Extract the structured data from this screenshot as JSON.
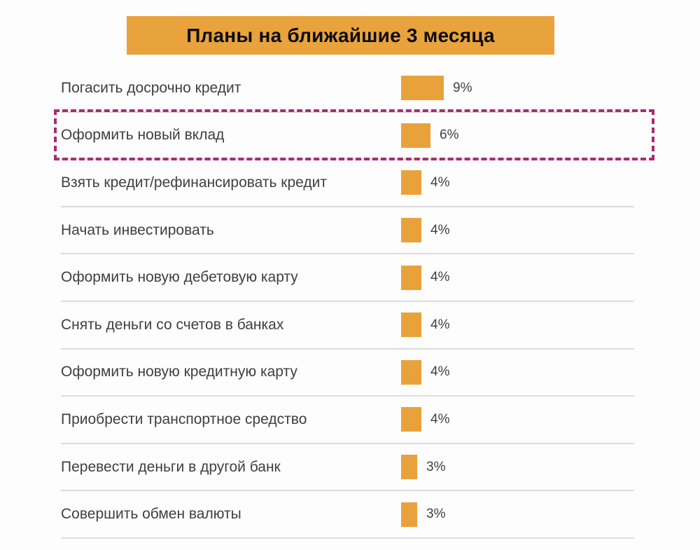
{
  "title": "Планы на ближайшие 3 месяца",
  "colors": {
    "bar_fill": "#E9A23B",
    "banner_background": "#E9A33D",
    "highlight_border": "#A92C72",
    "label_text": "#3F3F3F",
    "separator": "#DCDCDC"
  },
  "chart_data": {
    "type": "bar",
    "orientation": "horizontal",
    "title": "Планы на ближайшие 3 месяца",
    "unit": "%",
    "grid": false,
    "legend": false,
    "categories": [
      "Погасить досрочно кредит",
      "Оформить новый вклад",
      "Взять кредит/рефинансировать кредит",
      "Начать инвестировать",
      "Оформить новую дебетовую карту",
      "Снять деньги со счетов в банках",
      "Оформить новую кредитную карту",
      "Приобрести транспортное средство",
      "Перевести деньги в другой банк",
      "Совершить обмен валюты"
    ],
    "values": [
      9,
      6,
      4,
      4,
      4,
      4,
      4,
      4,
      3,
      3
    ],
    "value_labels": [
      "9%",
      "6%",
      "4%",
      "4%",
      "4%",
      "4%",
      "4%",
      "4%",
      "3%",
      "3%"
    ],
    "highlighted_index": 1,
    "highlighted_category": "Оформить новый вклад"
  }
}
